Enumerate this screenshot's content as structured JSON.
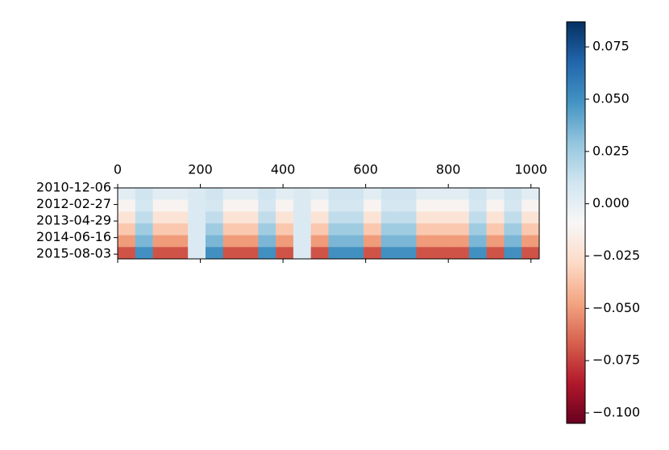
{
  "chart_data": {
    "type": "heatmap",
    "colormap": "RdBu",
    "xlim": [
      0,
      1020
    ],
    "xticks": [
      0,
      200,
      400,
      600,
      800,
      1000
    ],
    "ylim": [
      -0.5,
      5.5
    ],
    "yticks": [
      {
        "value": -0.5,
        "label": "2010-12-06"
      },
      {
        "value": 0.9,
        "label": "2012-02-27"
      },
      {
        "value": 2.3,
        "label": "2013-04-29"
      },
      {
        "value": 3.7,
        "label": "2014-06-16"
      },
      {
        "value": 5.1,
        "label": "2015-08-03"
      }
    ],
    "clim": [
      -0.105,
      0.087
    ],
    "cticks": [
      {
        "value": -0.1,
        "label": "−0.100"
      },
      {
        "value": -0.075,
        "label": "−0.075"
      },
      {
        "value": -0.05,
        "label": "−0.050"
      },
      {
        "value": -0.025,
        "label": "−0.025"
      },
      {
        "value": 0,
        "label": "0.000"
      },
      0.025,
      {
        "value": 0.05,
        "label": "0.050"
      },
      0.075
    ],
    "z": [
      [
        0.002,
        0.01,
        0.002,
        0.002,
        0.005,
        0.01,
        0.002,
        0.002,
        0.01,
        0.002,
        0.005,
        0.002,
        0.01,
        0.01,
        0.002,
        0.01,
        0.01,
        0.002,
        0.002,
        0.002,
        0.01,
        0.002,
        0.01,
        0.002
      ],
      [
        -0.012,
        0.008,
        -0.012,
        -0.012,
        0.005,
        0.008,
        -0.012,
        -0.012,
        0.008,
        -0.012,
        0.005,
        -0.012,
        0.008,
        0.008,
        -0.012,
        0.008,
        0.008,
        -0.012,
        -0.012,
        -0.012,
        0.008,
        -0.012,
        0.008,
        -0.012
      ],
      [
        -0.022,
        0.015,
        -0.022,
        -0.022,
        0.005,
        0.015,
        -0.022,
        -0.022,
        0.015,
        -0.022,
        0.005,
        -0.022,
        0.015,
        0.015,
        -0.022,
        0.015,
        0.015,
        -0.022,
        -0.022,
        -0.022,
        0.015,
        -0.022,
        0.015,
        -0.022
      ],
      [
        -0.035,
        0.025,
        -0.035,
        -0.035,
        0.005,
        0.025,
        -0.035,
        -0.035,
        0.025,
        -0.035,
        0.005,
        -0.035,
        0.025,
        0.025,
        -0.035,
        0.025,
        0.025,
        -0.035,
        -0.035,
        -0.035,
        0.025,
        -0.035,
        0.025,
        -0.035
      ],
      [
        -0.05,
        0.035,
        -0.05,
        -0.05,
        0.005,
        0.035,
        -0.05,
        -0.05,
        0.035,
        -0.05,
        0.005,
        -0.05,
        0.035,
        0.035,
        -0.05,
        0.035,
        0.035,
        -0.05,
        -0.05,
        -0.05,
        0.035,
        -0.05,
        0.035,
        -0.05
      ],
      [
        -0.07,
        0.05,
        -0.07,
        -0.07,
        0.005,
        0.05,
        -0.07,
        -0.07,
        0.05,
        -0.07,
        0.005,
        -0.07,
        0.05,
        0.05,
        -0.07,
        0.05,
        0.05,
        -0.07,
        -0.07,
        -0.07,
        0.05,
        -0.07,
        0.05,
        -0.07
      ]
    ]
  }
}
